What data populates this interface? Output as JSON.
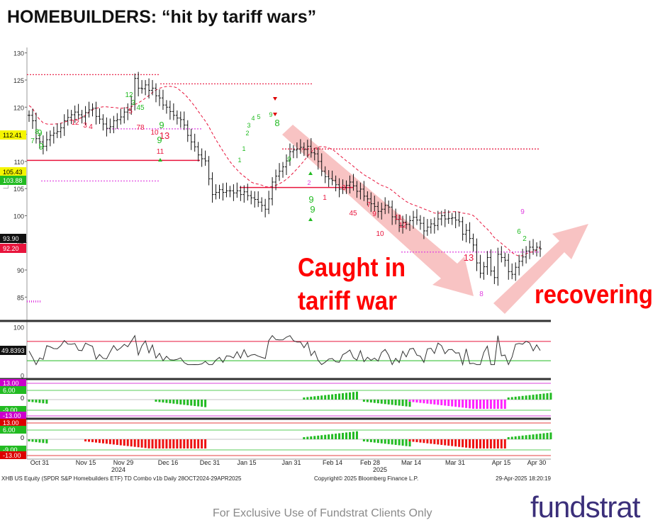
{
  "slide": {
    "title": "HOMEBUILDERS: “hit by tariff wars”",
    "footer": "For Exclusive Use of Fundstrat Clients Only",
    "logo": "fundstrat"
  },
  "chart_data": {
    "type": "candlestick",
    "price_panel": {
      "ylim": [
        81,
        131
      ],
      "y_ticks": [
        85,
        90,
        95,
        100,
        105,
        110,
        115,
        120,
        125,
        130
      ],
      "ylabel": "L",
      "last_labels": [
        {
          "text": "112.41",
          "value": 112.41,
          "bg": "#f5f500",
          "fg": "#000000"
        },
        {
          "text": "105.43",
          "value": 105.43,
          "bg": "#f5f500",
          "fg": "#000000"
        },
        {
          "text": "103.88",
          "value": 103.88,
          "bg": "#22bb22",
          "fg": "#ffffff"
        },
        {
          "text": "93.90",
          "value": 93.9,
          "bg": "#111111",
          "fg": "#ffffff"
        },
        {
          "text": "92.20",
          "value": 92.2,
          "bg": "#e8143c",
          "fg": "#ffffff"
        }
      ],
      "closes": [
        118.5,
        117.5,
        114.2,
        113.6,
        112.8,
        114,
        114.8,
        115.2,
        115.5,
        116.2,
        117.5,
        118.1,
        118.6,
        119.1,
        118.6,
        118.2,
        119,
        119.5,
        119.8,
        118.3,
        117.8,
        116.9,
        116.1,
        116.4,
        117.5,
        117.7,
        118.2,
        119.1,
        119.5,
        120.6,
        125.3,
        123.5,
        123.4,
        124.1,
        123.1,
        123.5,
        122.1,
        121.7,
        120.4,
        120,
        119.2,
        118.5,
        118,
        117.7,
        116.7,
        114.8,
        113.6,
        112.7,
        111.2,
        110.5,
        110.1,
        106.8,
        103.9,
        104.3,
        104.8,
        104.3,
        104.6,
        104.6,
        104.2,
        104.6,
        103.9,
        104.4,
        103.7,
        103.3,
        103,
        102.5,
        101.9,
        101.2,
        103.1,
        106.2,
        107.3,
        108.2,
        109,
        110.1,
        111.8,
        112.1,
        112.3,
        112.6,
        112.2,
        112.8,
        111.6,
        111.4,
        110,
        108.2,
        107.2,
        106.8,
        106.5,
        105.7,
        104.9,
        105.2,
        105.6,
        106.2,
        105.5,
        104.5,
        104.9,
        103.6,
        103.1,
        102.2,
        101.7,
        100.8,
        101.2,
        101.9,
        101.6,
        99.8,
        99.3,
        98.2,
        98.8,
        98.4,
        99.1,
        99.7,
        99.2,
        98.6,
        97.2,
        97.9,
        98.5,
        98.2,
        99.4,
        100,
        99.4,
        99.5,
        99.6,
        99.2,
        98.9,
        96.6,
        97.3,
        95.8,
        94.6,
        91.3,
        89.4,
        90.6,
        92.3,
        89.8,
        88.6,
        92.9,
        92.3,
        91.8,
        89.7,
        89.2,
        90.5,
        91.6,
        92.4,
        93.5,
        94.2,
        93.7,
        94.2,
        93.9
      ],
      "x_range": [
        "2024-10-28",
        "2025-04-29"
      ],
      "horizontal_levels": [
        {
          "value": 126,
          "style": "dotted",
          "color": "#e8143c"
        },
        {
          "value": 124.3,
          "style": "dotted",
          "color": "#e8143c"
        },
        {
          "value": 112.3,
          "style": "dotted",
          "color": "#e8143c"
        },
        {
          "value": 110.2,
          "style": "solid",
          "color": "#e8143c"
        },
        {
          "value": 105.2,
          "style": "solid",
          "color": "#e8143c"
        },
        {
          "value": 106.4,
          "style": "dotted",
          "color": "#e040e0"
        },
        {
          "value": 116,
          "style": "dotted",
          "color": "#e040e0"
        },
        {
          "value": 93.3,
          "style": "dotted",
          "color": "#e040e0"
        }
      ]
    },
    "x_ticks": [
      "Oct 31",
      "Nov 15",
      "Nov 29",
      "Dec 16",
      "Dec 31",
      "Jan 15",
      "Jan 31",
      "Feb 14",
      "Feb 28",
      "Mar 14",
      "Mar 31",
      "Apr 15",
      "Apr 30"
    ],
    "x_years": [
      "2024",
      "2025"
    ],
    "rsi_panel": {
      "ylim": [
        -5,
        105
      ],
      "y_ticks": [
        0,
        50,
        100
      ],
      "last_value": "49.8393",
      "upper": 70,
      "lower": 30
    },
    "indicator_panels": [
      {
        "labels": [
          "13.00",
          "6.00",
          "0",
          "-9.00",
          "-13.00"
        ],
        "label_colors": [
          "#cc00cc",
          "#22bb22",
          "#000000",
          "#22bb22",
          "#cc00cc"
        ],
        "last_color": "#ff22ff"
      },
      {
        "labels": [
          "13.00",
          "6.00",
          "0",
          "-9.00",
          "-13.00"
        ],
        "label_colors": [
          "#dd0000",
          "#22bb22",
          "#000000",
          "#22bb22",
          "#dd0000"
        ],
        "last_color": "#ee1111"
      }
    ],
    "td_counts": [
      {
        "t": "9",
        "c": "#22bb22"
      },
      {
        "t": "8",
        "c": "#22bb22"
      },
      {
        "t": "7",
        "c": "#22bb22"
      },
      {
        "t": "9",
        "c": "#22bb22"
      },
      {
        "t": "1",
        "c": "#22bb22"
      },
      {
        "t": "2",
        "c": "#22bb22"
      },
      {
        "t": "3",
        "c": "#22bb22"
      },
      {
        "t": "4",
        "c": "#22bb22"
      },
      {
        "t": "12",
        "c": "#e8143c"
      },
      {
        "t": "3",
        "c": "#e8143c"
      },
      {
        "t": "4",
        "c": "#e8143c"
      },
      {
        "t": "12",
        "c": "#22bb22"
      },
      {
        "t": "3",
        "c": "#22bb22"
      },
      {
        "t": "5",
        "c": "#e8143c"
      },
      {
        "t": "45",
        "c": "#22bb22"
      },
      {
        "t": "9",
        "c": "#22bb22"
      },
      {
        "t": "78",
        "c": "#e8143c"
      },
      {
        "t": "10",
        "c": "#e8143c"
      },
      {
        "t": "13",
        "c": "#e8143c"
      },
      {
        "t": "9",
        "c": "#22bb22"
      },
      {
        "t": "11",
        "c": "#e8143c"
      },
      {
        "t": "1",
        "c": "#22bb22"
      },
      {
        "t": "5",
        "c": "#22bb22"
      },
      {
        "t": "9",
        "c": "#22bb22"
      },
      {
        "t": "8",
        "c": "#22bb22"
      },
      {
        "t": "9",
        "c": "#22bb22"
      },
      {
        "t": "2",
        "c": "#e040e0"
      },
      {
        "t": "9",
        "c": "#22bb22"
      },
      {
        "t": "9",
        "c": "#22bb22"
      },
      {
        "t": "1",
        "c": "#e8143c"
      },
      {
        "t": "3",
        "c": "#e8143c"
      },
      {
        "t": "45",
        "c": "#e8143c"
      },
      {
        "t": "7",
        "c": "#e8143c"
      },
      {
        "t": "9",
        "c": "#e8143c"
      },
      {
        "t": "10",
        "c": "#e8143c"
      },
      {
        "t": "11",
        "c": "#e8143c"
      },
      {
        "t": "12",
        "c": "#e8143c"
      },
      {
        "t": "13",
        "c": "#e8143c"
      },
      {
        "t": "8",
        "c": "#e040e0"
      },
      {
        "t": "9",
        "c": "#e040e0"
      },
      {
        "t": "2",
        "c": "#22bb22"
      },
      {
        "t": "6",
        "c": "#22bb22"
      },
      {
        "t": "1",
        "c": "#22bb22"
      }
    ],
    "annotations": [
      {
        "text": "Caught in",
        "color": "#ff0000"
      },
      {
        "text": "tariff war",
        "color": "#ff0000"
      },
      {
        "text": "recovering",
        "color": "#ff0000"
      }
    ],
    "source_line": "XHB US Equity (SPDR S&P Homebuilders ETF) TD Combo v1b  Daily 28OCT2024-29APR2025",
    "copyright": "Copyright© 2025 Bloomberg Finance L.P.",
    "timestamp": "29-Apr-2025 18:20:19"
  },
  "colors": {
    "arrow": "#f7b8b8",
    "price_bar": "#111111",
    "ma_line": "#e8143c",
    "rsi_line": "#333333",
    "separator": "#333333"
  }
}
